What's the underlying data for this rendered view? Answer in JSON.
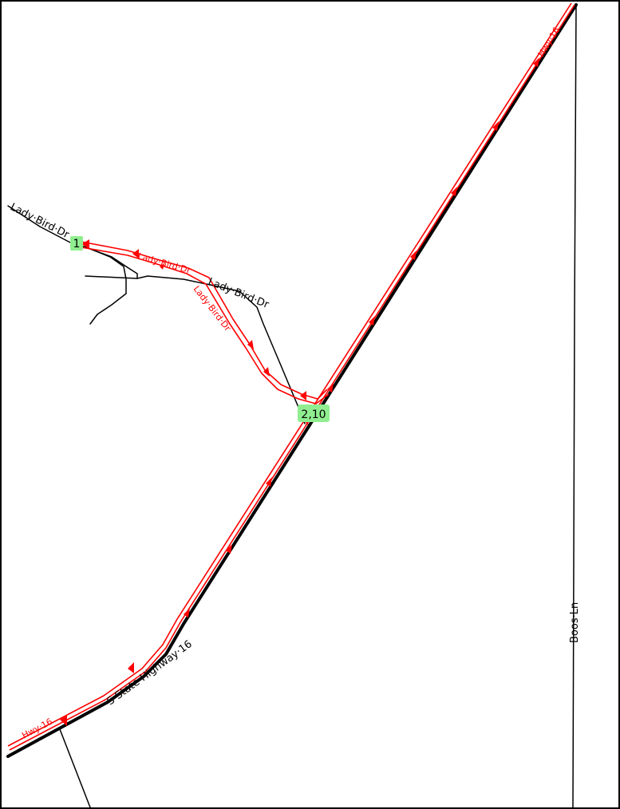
{
  "streets": {
    "lady_bird_dr_west": "Lady·Bird·Dr",
    "lady_bird_dr_east": "Lady·Bird·Dr",
    "s_state_highway_16": "S·State·Highway·16",
    "boos_ln": "Boos·Ln"
  },
  "route_labels": {
    "hwy16_top": "Hwy·16",
    "hwy16_bottom": "Hwy·16",
    "lady_bird_1": "Lady·Bird·Dr",
    "lady_bird_2": "Lady·Bird·Dr"
  },
  "stops": [
    {
      "label": "1"
    },
    {
      "label": "2,10"
    }
  ],
  "colors": {
    "route": "#ff0000",
    "road": "#000000",
    "stop_fill": "#90ee90",
    "background": "#ffffff"
  }
}
